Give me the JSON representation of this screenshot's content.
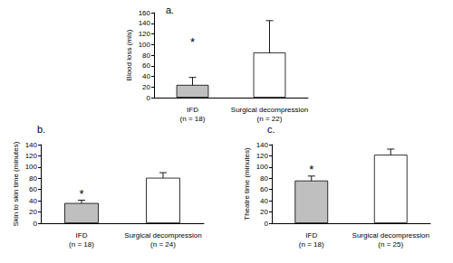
{
  "chart_data": [
    {
      "type": "bar",
      "title": "a.",
      "y_label": "Blood loss (mls)",
      "categories": [
        "IFD\n(n = 18)",
        "Surgical decompression\n(n = 22)"
      ],
      "values": [
        24,
        85
      ],
      "errors": [
        14,
        60
      ],
      "colors": [
        "#bfbfbf",
        "#ffffff"
      ],
      "ylim": [
        0,
        160
      ],
      "yticks": [
        0,
        20,
        40,
        60,
        80,
        100,
        120,
        140,
        160
      ],
      "grid": false,
      "annotations": [
        {
          "text": "*",
          "category": "IFD\n(n = 18)",
          "y": 105
        }
      ]
    },
    {
      "type": "bar",
      "title": "b.",
      "y_label": "Skin to skin time (minutes)",
      "categories": [
        "IFD\n(n = 18)",
        "Surgical decompression\n(n = 24)"
      ],
      "values": [
        36,
        81
      ],
      "errors": [
        5,
        9
      ],
      "colors": [
        "#bfbfbf",
        "#ffffff"
      ],
      "ylim": [
        0,
        140
      ],
      "yticks": [
        0,
        20,
        40,
        60,
        80,
        100,
        120,
        140
      ],
      "grid": false,
      "annotations": [
        {
          "text": "*",
          "category": "IFD\n(n = 18)",
          "y": 52
        }
      ]
    },
    {
      "type": "bar",
      "title": "c.",
      "y_label": "Theatre time (minutes)",
      "categories": [
        "IFD\n(n = 18)",
        "Surgical decompression\n(n = 25)"
      ],
      "values": [
        76,
        122
      ],
      "errors": [
        8,
        10
      ],
      "colors": [
        "#bfbfbf",
        "#ffffff"
      ],
      "ylim": [
        0,
        140
      ],
      "yticks": [
        0,
        20,
        40,
        60,
        80,
        100,
        120,
        140
      ],
      "grid": false,
      "annotations": [
        {
          "text": "*",
          "category": "IFD\n(n = 18)",
          "y": 95
        }
      ]
    }
  ]
}
